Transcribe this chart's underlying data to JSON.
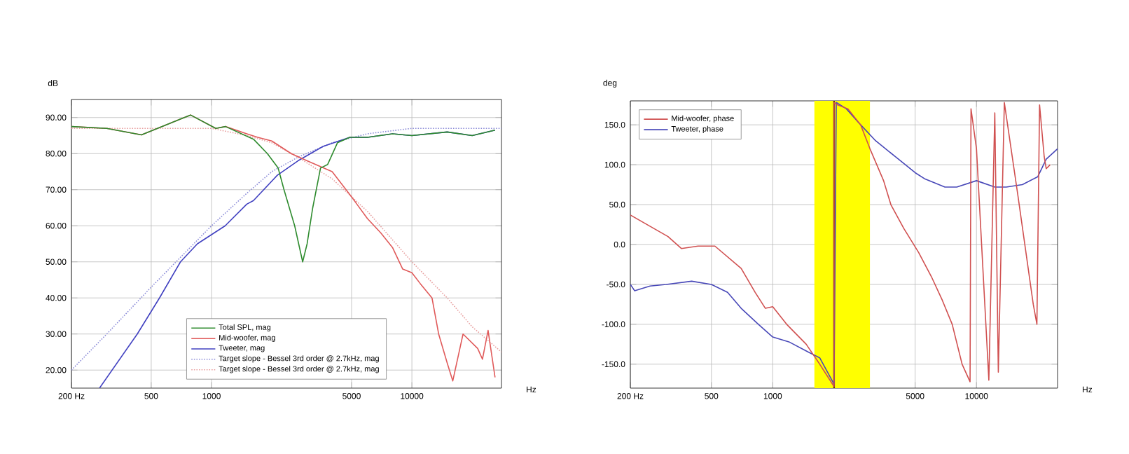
{
  "chart_data": [
    {
      "type": "line",
      "xlabel": "Hz",
      "ylabel": "dB",
      "log": "x",
      "grid": true,
      "legend": "bottom",
      "marker": "none",
      "xlim": [
        200,
        28000
      ],
      "ylim": [
        15,
        95
      ],
      "xticks": [
        {
          "value": 200,
          "label": "200 Hz"
        },
        500,
        1000,
        5000,
        10000
      ],
      "yticks": [
        {
          "value": 20,
          "label": "20.00"
        },
        {
          "value": 30,
          "label": "30.00"
        },
        {
          "value": 40,
          "label": "40.00"
        },
        {
          "value": 50,
          "label": "50.00"
        },
        {
          "value": 60,
          "label": "60.00"
        },
        {
          "value": 70,
          "label": "70.00"
        },
        {
          "value": 80,
          "label": "80.00"
        },
        {
          "value": 90,
          "label": "90.00"
        }
      ],
      "series": [
        {
          "name": "Total SPL, mag",
          "color": "#2e8b2e",
          "line_style": "solid",
          "x": [
            200,
            300,
            447,
            786,
            1050,
            1175,
            1620,
            1900,
            2150,
            2300,
            2600,
            2850,
            3000,
            3200,
            3500,
            3800,
            4250,
            4900,
            6000,
            8000,
            10000,
            15000,
            20000,
            26000
          ],
          "values": [
            87.5,
            87,
            85.2,
            90.7,
            87,
            87.5,
            84,
            80,
            76,
            70,
            60,
            50,
            55,
            65,
            76,
            77,
            83,
            84.5,
            84.5,
            85.5,
            85,
            86,
            85,
            86.5
          ]
        },
        {
          "name": "Mid-woofer, mag",
          "color": "#e05a5a",
          "line_style": "solid",
          "x": [
            200,
            300,
            447,
            786,
            1050,
            1175,
            1500,
            1700,
            2000,
            2500,
            3000,
            4000,
            5000,
            6000,
            7000,
            8000,
            9000,
            10000,
            11000,
            12600,
            13600,
            15000,
            16000,
            18000,
            21300,
            22500,
            24000,
            26000
          ],
          "values": [
            87.5,
            87,
            85.2,
            90.7,
            87,
            87.5,
            85.5,
            84.5,
            83.5,
            80,
            78,
            75,
            68,
            62,
            58,
            54,
            48,
            47,
            44,
            40,
            30,
            22,
            17,
            30,
            26,
            23,
            31,
            18
          ]
        },
        {
          "name": "Tweeter, mag",
          "color": "#4040c0",
          "line_style": "solid",
          "x": [
            276,
            426,
            550,
            700,
            850,
            1170,
            1500,
            1620,
            2130,
            2700,
            3600,
            4900,
            6000,
            8000,
            10000,
            15000,
            20000,
            26000
          ],
          "values": [
            15,
            30,
            40,
            50,
            55,
            60,
            66,
            67,
            74,
            78,
            82,
            84.5,
            84.5,
            85.5,
            85,
            86,
            85,
            86.5
          ]
        },
        {
          "name": "Target slope - Bessel 3rd order @ 2.7kHz, mag",
          "color": "#8c8cd8",
          "line_style": "dotted",
          "x": [
            200,
            300,
            500,
            1000,
            1500,
            2000,
            2700,
            4000,
            6000,
            10000,
            28000
          ],
          "values": [
            20,
            30,
            43,
            60,
            69,
            75,
            79,
            83,
            85.5,
            87,
            87
          ]
        },
        {
          "name": "Target slope - Bessel 3rd order @ 2.7kHz, mag",
          "color": "#e8a0a0",
          "line_style": "dotted",
          "x": [
            200,
            1000,
            1500,
            2000,
            2700,
            4000,
            6000,
            10000,
            15000,
            20000,
            28000
          ],
          "values": [
            87,
            87,
            85,
            83,
            79,
            73,
            64,
            50,
            40,
            32,
            25
          ]
        }
      ]
    },
    {
      "type": "line",
      "xlabel": "Hz",
      "ylabel": "deg",
      "log": "x",
      "grid": true,
      "legend": "top left",
      "marker": "none",
      "xlim": [
        200,
        25000
      ],
      "ylim": [
        -180,
        180
      ],
      "xticks": [
        {
          "value": 200,
          "label": "200 Hz"
        },
        500,
        1000,
        5000,
        10000
      ],
      "yticks": [
        {
          "value": -150,
          "label": "-150.0"
        },
        {
          "value": -100,
          "label": "-100.0"
        },
        {
          "value": -50,
          "label": "-50.0"
        },
        {
          "value": 0,
          "label": "0.0"
        },
        {
          "value": 50,
          "label": "50.0"
        },
        {
          "value": 100,
          "label": "100.0"
        },
        {
          "value": 150,
          "label": "150.0"
        }
      ],
      "bands": [
        {
          "axis": "x",
          "from": 1600,
          "to": 3000,
          "color": "#ffff00"
        }
      ],
      "ref_lines": [
        {
          "axis": "x",
          "value": 2000,
          "color": "#5a3010",
          "line_style": "solid"
        }
      ],
      "series": [
        {
          "name": "Mid-woofer, phase",
          "color": "#d05050",
          "x": [
            200,
            306,
            356,
            430,
            520,
            700,
            820,
            920,
            1000,
            1170,
            1460,
            1700,
            2000,
            2000,
            2080,
            2340,
            2700,
            3000,
            3500,
            3800,
            4400,
            5200,
            6000,
            6800,
            7600,
            8500,
            9300,
            9400,
            10000,
            11500,
            12300,
            12800,
            13700,
            16000,
            19000,
            19800,
            20400,
            21500,
            22000,
            23000
          ],
          "values": [
            37,
            10,
            -5,
            -2,
            -2,
            -30,
            -60,
            -80,
            -78,
            -100,
            -125,
            -150,
            -178,
            178,
            175,
            170,
            150,
            120,
            80,
            50,
            20,
            -10,
            -40,
            -70,
            -100,
            -150,
            -172,
            170,
            120,
            -170,
            165,
            -160,
            178,
            60,
            -75,
            -100,
            175,
            110,
            95,
            100
          ]
        },
        {
          "name": "Tweeter, phase",
          "color": "#4848b8",
          "x": [
            200,
            210,
            250,
            300,
            400,
            500,
            600,
            700,
            850,
            1000,
            1200,
            1500,
            1700,
            2000,
            2050,
            2300,
            2700,
            3200,
            4000,
            5000,
            5600,
            7000,
            8000,
            10000,
            12300,
            14000,
            16800,
            20000,
            22000,
            25000
          ],
          "values": [
            -50,
            -58,
            -52,
            -50,
            -46,
            -50,
            -60,
            -80,
            -100,
            -116,
            -122,
            -135,
            -142,
            -175,
            178,
            170,
            150,
            130,
            110,
            90,
            82,
            72,
            72,
            80,
            72,
            72,
            75,
            85,
            107,
            120
          ]
        }
      ]
    }
  ]
}
